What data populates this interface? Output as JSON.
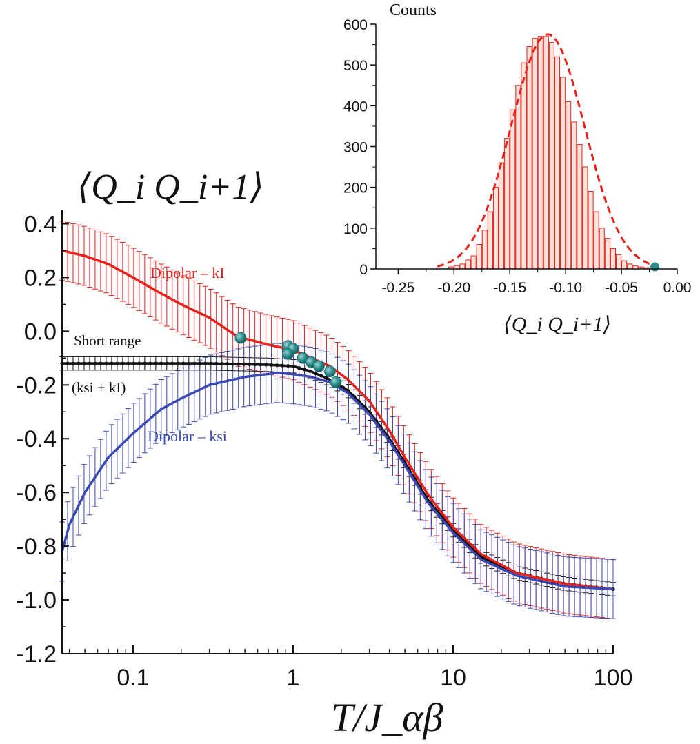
{
  "chart_data": [
    {
      "type": "line",
      "title": "",
      "xlabel": "T/J_αβ",
      "ylabel": "⟨Q_i Q_i+1⟩",
      "xscale": "log",
      "xlim": [
        0.036,
        100
      ],
      "ylim": [
        -1.2,
        0.45
      ],
      "x_ticks": [
        0.1,
        1,
        10,
        100
      ],
      "x_tick_labels": [
        "0.1",
        "1",
        "10",
        "100"
      ],
      "y_ticks": [
        0.4,
        0.2,
        0.0,
        -0.2,
        -0.4,
        -0.6,
        -0.8,
        -1.0,
        -1.2
      ],
      "y_tick_labels": [
        "0.4",
        "0.2",
        "0.0",
        "-0.2",
        "-0.4",
        "-0.6",
        "-0.8",
        "-1.0",
        "-1.2"
      ],
      "series": [
        {
          "name": "Dipolar – kI",
          "color": "#e8211b",
          "points": [
            [
              0.036,
              0.3
            ],
            [
              0.05,
              0.28
            ],
            [
              0.07,
              0.25
            ],
            [
              0.1,
              0.2
            ],
            [
              0.15,
              0.14
            ],
            [
              0.2,
              0.1
            ],
            [
              0.3,
              0.05
            ],
            [
              0.45,
              -0.02
            ],
            [
              0.7,
              -0.05
            ],
            [
              1.0,
              -0.07
            ],
            [
              1.3,
              -0.1
            ],
            [
              1.7,
              -0.13
            ],
            [
              2.2,
              -0.18
            ],
            [
              3,
              -0.26
            ],
            [
              4,
              -0.37
            ],
            [
              5,
              -0.47
            ],
            [
              7,
              -0.61
            ],
            [
              10,
              -0.73
            ],
            [
              15,
              -0.83
            ],
            [
              25,
              -0.9
            ],
            [
              50,
              -0.94
            ],
            [
              100,
              -0.96
            ]
          ],
          "error": 0.11
        },
        {
          "name": "Short range (ksi + kI)",
          "color": "#111111",
          "points": [
            [
              0.036,
              -0.12
            ],
            [
              0.1,
              -0.12
            ],
            [
              0.3,
              -0.12
            ],
            [
              0.7,
              -0.125
            ],
            [
              1.0,
              -0.13
            ],
            [
              1.3,
              -0.15
            ],
            [
              1.7,
              -0.18
            ],
            [
              2.2,
              -0.22
            ],
            [
              3,
              -0.3
            ],
            [
              4,
              -0.4
            ],
            [
              5,
              -0.49
            ],
            [
              7,
              -0.63
            ],
            [
              10,
              -0.74
            ],
            [
              15,
              -0.84
            ],
            [
              25,
              -0.9
            ],
            [
              50,
              -0.94
            ],
            [
              100,
              -0.96
            ]
          ],
          "error": 0.025
        },
        {
          "name": "Dipolar – ksi",
          "color": "#3a48b4",
          "points": [
            [
              0.036,
              -0.82
            ],
            [
              0.04,
              -0.72
            ],
            [
              0.05,
              -0.6
            ],
            [
              0.07,
              -0.47
            ],
            [
              0.1,
              -0.38
            ],
            [
              0.15,
              -0.29
            ],
            [
              0.2,
              -0.25
            ],
            [
              0.3,
              -0.2
            ],
            [
              0.5,
              -0.17
            ],
            [
              0.8,
              -0.155
            ],
            [
              1.0,
              -0.16
            ],
            [
              1.3,
              -0.17
            ],
            [
              1.7,
              -0.19
            ],
            [
              2.2,
              -0.23
            ],
            [
              3,
              -0.31
            ],
            [
              4,
              -0.41
            ],
            [
              5,
              -0.5
            ],
            [
              7,
              -0.64
            ],
            [
              10,
              -0.75
            ],
            [
              15,
              -0.85
            ],
            [
              25,
              -0.91
            ],
            [
              50,
              -0.95
            ],
            [
              100,
              -0.96
            ]
          ],
          "error": 0.11
        }
      ],
      "markers": {
        "color": "#2a8c8c",
        "points": [
          [
            0.47,
            -0.025
          ],
          [
            0.93,
            -0.055
          ],
          [
            1.0,
            -0.065
          ],
          [
            0.93,
            -0.085
          ],
          [
            1.15,
            -0.1
          ],
          [
            1.3,
            -0.115
          ],
          [
            1.45,
            -0.13
          ],
          [
            1.7,
            -0.15
          ],
          [
            1.85,
            -0.19
          ]
        ]
      },
      "annotations": {
        "dipolar_kI": "Dipolar – kI",
        "short_range_line1": "Short range",
        "short_range_line2": "(ksi + kI)",
        "dipolar_ksi": "Dipolar – ksi"
      }
    },
    {
      "type": "bar",
      "title": "Counts",
      "xlabel": "⟨Q_i Q_i+1⟩",
      "ylabel": "Counts",
      "xlim": [
        -0.27,
        0.0
      ],
      "ylim": [
        0,
        600
      ],
      "x_ticks": [
        -0.25,
        -0.2,
        -0.15,
        -0.1,
        -0.05,
        0.0
      ],
      "x_tick_labels": [
        "-0.25",
        "-0.20",
        "-0.15",
        "-0.10",
        "-0.05",
        "0.00"
      ],
      "y_ticks": [
        0,
        100,
        200,
        300,
        400,
        500,
        600
      ],
      "y_tick_labels": [
        "0",
        "100",
        "200",
        "300",
        "400",
        "500",
        "600"
      ],
      "histogram_bars": {
        "color": "#e8211b",
        "x": [
          -0.2025,
          -0.1975,
          -0.1925,
          -0.1875,
          -0.1825,
          -0.1775,
          -0.1725,
          -0.1675,
          -0.1625,
          -0.1575,
          -0.1525,
          -0.1475,
          -0.1425,
          -0.1375,
          -0.1325,
          -0.1275,
          -0.1225,
          -0.1175,
          -0.1125,
          -0.1075,
          -0.1025,
          -0.0975,
          -0.0925,
          -0.0875,
          -0.0825,
          -0.0775,
          -0.0725,
          -0.0675,
          -0.0625,
          -0.0575,
          -0.0525,
          -0.0475,
          -0.0425,
          -0.0375,
          -0.0325,
          -0.0275
        ],
        "values": [
          5,
          8,
          12,
          22,
          32,
          60,
          95,
          140,
          200,
          260,
          320,
          390,
          450,
          505,
          545,
          565,
          570,
          570,
          555,
          520,
          470,
          410,
          360,
          305,
          250,
          190,
          140,
          100,
          75,
          50,
          35,
          20,
          12,
          8,
          5,
          3
        ]
      },
      "fit_curve": {
        "type": "gaussian",
        "color": "#e8211b",
        "style": "dashed",
        "mean": -0.116,
        "sigma": 0.033,
        "amplitude": 575
      },
      "marker": {
        "x": -0.02,
        "y": 5,
        "color": "#2a8c8c"
      }
    }
  ]
}
